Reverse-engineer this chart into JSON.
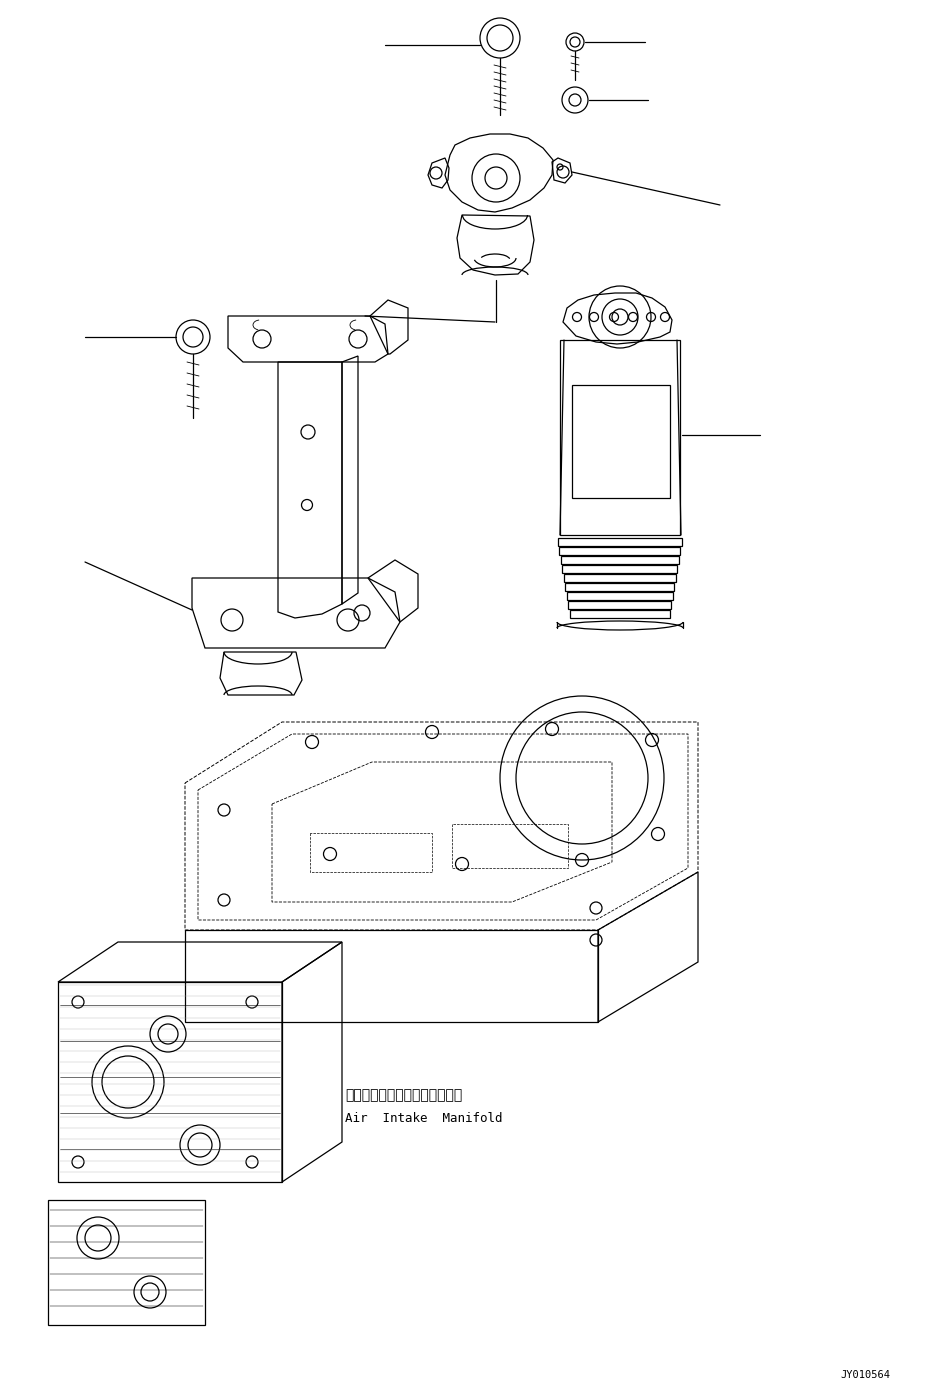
{
  "bg_color": "#ffffff",
  "lc": "#000000",
  "fig_width": 9.27,
  "fig_height": 13.92,
  "dpi": 100,
  "label_jp": "エアーインテークマニホールド",
  "label_en": "Air  Intake  Manifold",
  "watermark": "JY010564",
  "lw": 0.9
}
